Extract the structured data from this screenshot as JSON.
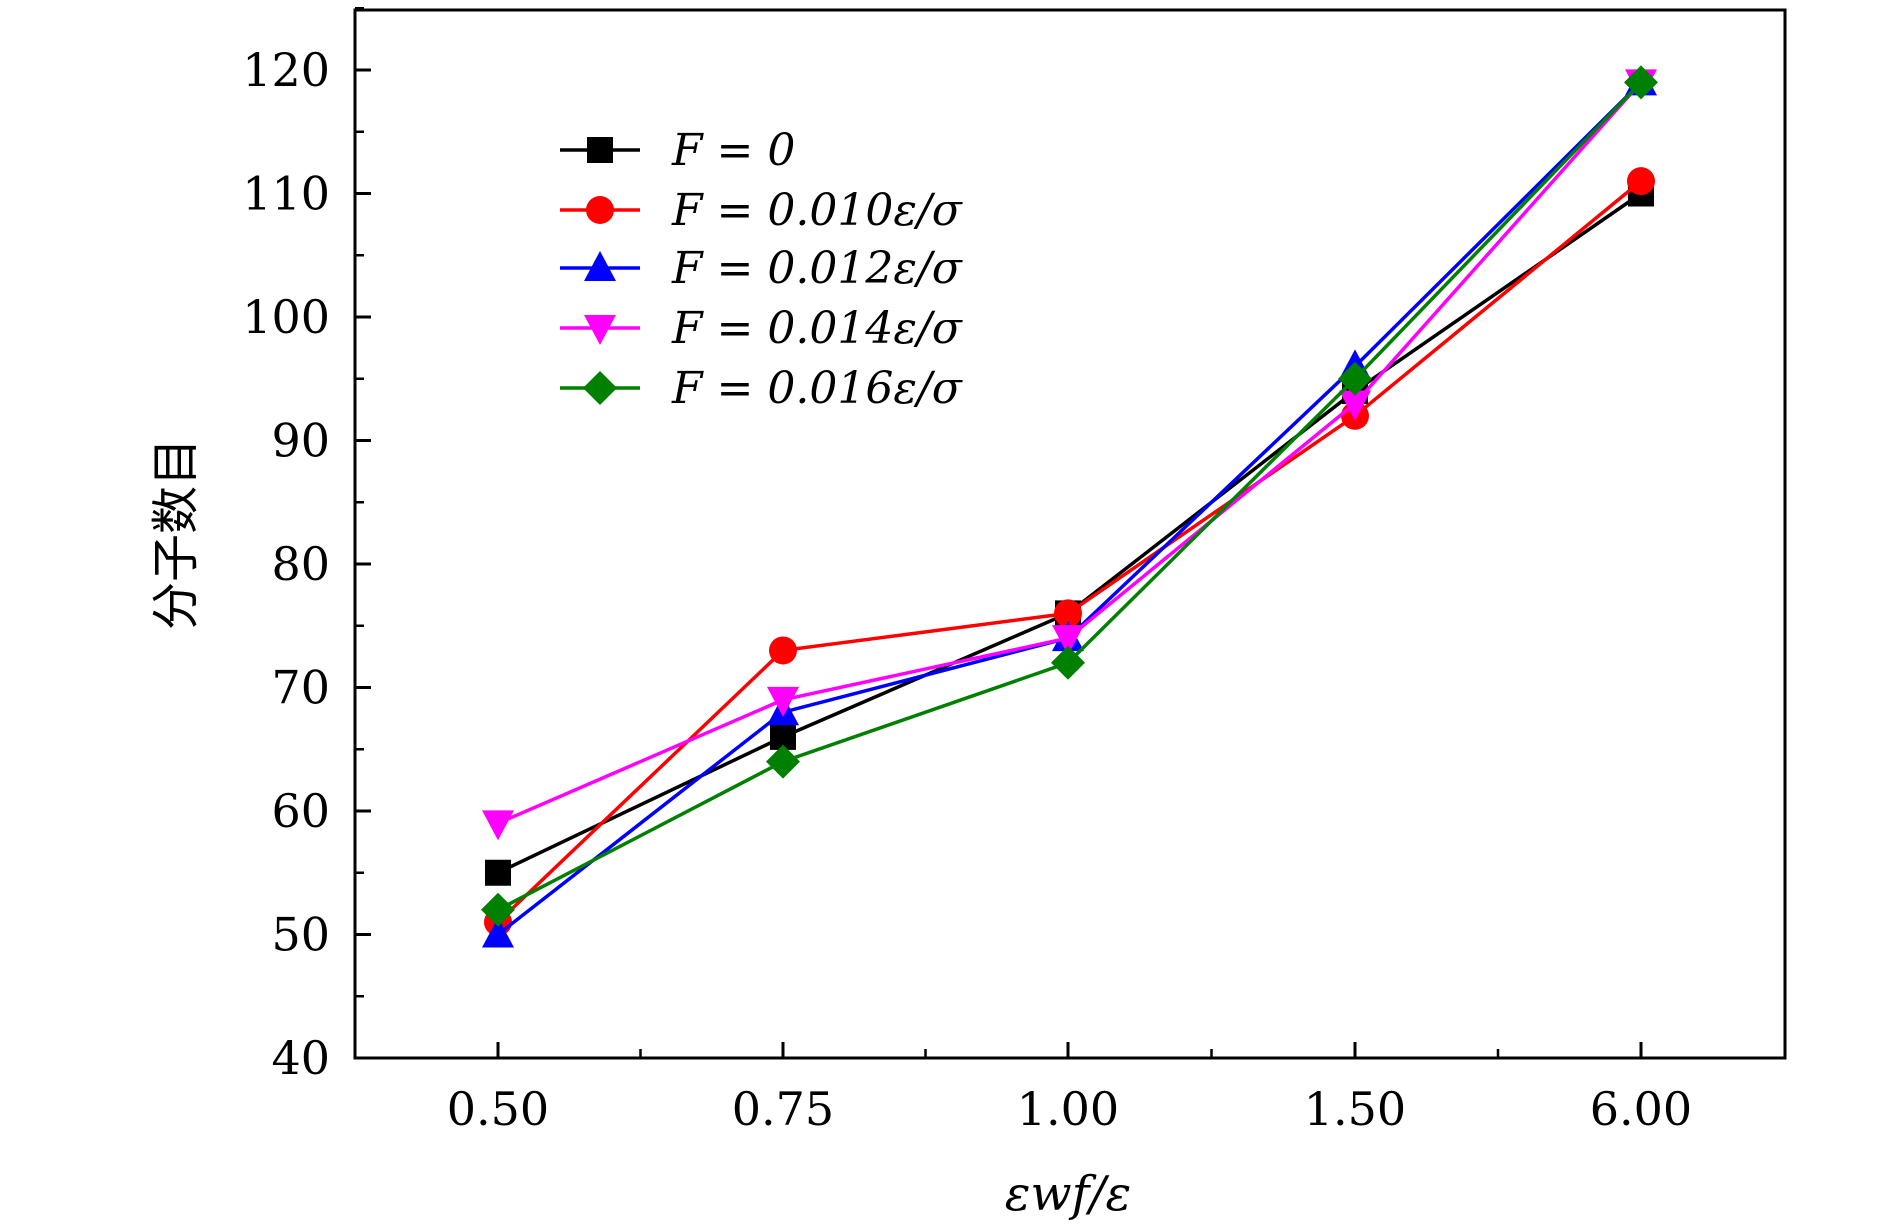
{
  "chart_data": {
    "type": "line",
    "categories": [
      "0.50",
      "0.75",
      "1.00",
      "1.50",
      "6.00"
    ],
    "xlabel": "εwf/ε",
    "ylabel": "分子数目",
    "ylim": [
      40,
      125
    ],
    "yticks": [
      40,
      50,
      60,
      70,
      80,
      90,
      100,
      110,
      120
    ],
    "grid": false,
    "legend_position": "top-left",
    "series": [
      {
        "name": "F = 0",
        "color": "#000000",
        "marker": "square",
        "values": [
          55,
          66,
          76,
          94,
          110
        ]
      },
      {
        "name": "F = 0.010ε/σ",
        "color": "#ff0000",
        "marker": "circle",
        "values": [
          51,
          73,
          76,
          92,
          111
        ]
      },
      {
        "name": "F = 0.012ε/σ",
        "color": "#0000ff",
        "marker": "triangle-up",
        "values": [
          50,
          68,
          74,
          96,
          119
        ]
      },
      {
        "name": "F = 0.014ε/σ",
        "color": "#ff00ff",
        "marker": "triangle-down",
        "values": [
          59,
          69,
          74,
          93,
          119
        ]
      },
      {
        "name": "F = 0.016ε/σ",
        "color": "#008000",
        "marker": "diamond",
        "values": [
          52,
          64,
          72,
          95,
          119
        ]
      }
    ]
  }
}
